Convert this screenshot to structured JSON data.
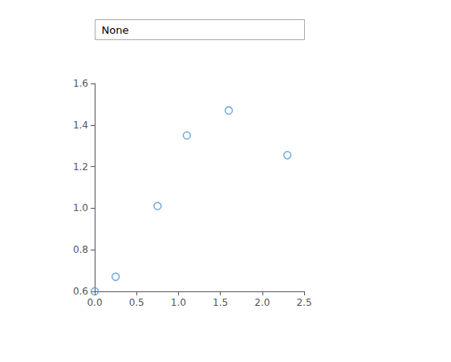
{
  "chart_data": {
    "type": "scatter",
    "x": [
      0.0,
      0.25,
      0.75,
      1.1,
      1.6,
      2.3
    ],
    "values": [
      0.6,
      0.67,
      1.01,
      1.35,
      1.47,
      1.255
    ],
    "color": "#4c96d4",
    "marker": "circle",
    "xlim": [
      0,
      2.5
    ],
    "ylim": [
      0.6,
      1.6
    ],
    "xticks": [
      {
        "value": 0,
        "label": "0.0"
      },
      0.5,
      {
        "value": 1.0,
        "label": "1.0"
      },
      1.5,
      {
        "value": 2.0,
        "label": "2.0"
      },
      2.5
    ],
    "yticks": [
      0.6,
      0.8,
      {
        "value": 1.0,
        "label": "1.0"
      },
      1.2,
      1.4,
      1.6
    ],
    "grid": false,
    "annotations": [
      "None"
    ]
  }
}
